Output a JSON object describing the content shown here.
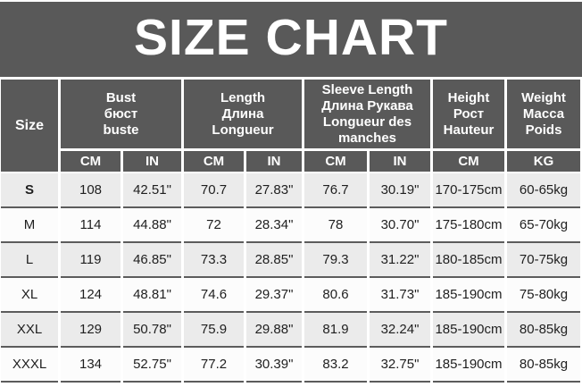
{
  "page": {
    "title": "SIZE CHART"
  },
  "colors": {
    "banner_bg": "#595959",
    "header_bg": "#595959",
    "header_text": "#ffffff",
    "row_alt_bg": "#ebebeb",
    "row_bg": "#fcfcfc",
    "row_border": "#5c5c5c",
    "cell_text": "#1f1f1f"
  },
  "headers": {
    "size": "Size",
    "bust": [
      "Bust",
      "бюст",
      "buste"
    ],
    "length": [
      "Length",
      "Длина",
      "Longueur"
    ],
    "sleeve": [
      "Sleeve Length",
      "Длина Рукава",
      "Longueur des manches"
    ],
    "height": [
      "Height",
      "Рост",
      "Hauteur"
    ],
    "weight": [
      "Weight",
      "Масса",
      "Poids"
    ],
    "units": [
      "CM",
      "IN",
      "CM",
      "IN",
      "CM",
      "IN",
      "CM",
      "KG"
    ]
  },
  "chart_data": {
    "type": "table",
    "title": "SIZE CHART",
    "columns": [
      "Size",
      "Bust CM",
      "Bust IN",
      "Length CM",
      "Length IN",
      "Sleeve Length CM",
      "Sleeve Length IN",
      "Height CM",
      "Weight KG"
    ],
    "rows": [
      [
        "S",
        "108",
        "42.51\"",
        "70.7",
        "27.83\"",
        "76.7",
        "30.19\"",
        "170-175cm",
        "60-65kg"
      ],
      [
        "M",
        "114",
        "44.88\"",
        "72",
        "28.34\"",
        "78",
        "30.70\"",
        "175-180cm",
        "65-70kg"
      ],
      [
        "L",
        "119",
        "46.85\"",
        "73.3",
        "28.85\"",
        "79.3",
        "31.22\"",
        "180-185cm",
        "70-75kg"
      ],
      [
        "XL",
        "124",
        "48.81\"",
        "74.6",
        "29.37\"",
        "80.6",
        "31.73\"",
        "185-190cm",
        "75-80kg"
      ],
      [
        "XXL",
        "129",
        "50.78\"",
        "75.9",
        "29.88\"",
        "81.9",
        "32.24\"",
        "185-190cm",
        "80-85kg"
      ],
      [
        "XXXL",
        "134",
        "52.75\"",
        "77.2",
        "30.39\"",
        "83.2",
        "32.75\"",
        "185-190cm",
        "80-85kg"
      ]
    ]
  }
}
